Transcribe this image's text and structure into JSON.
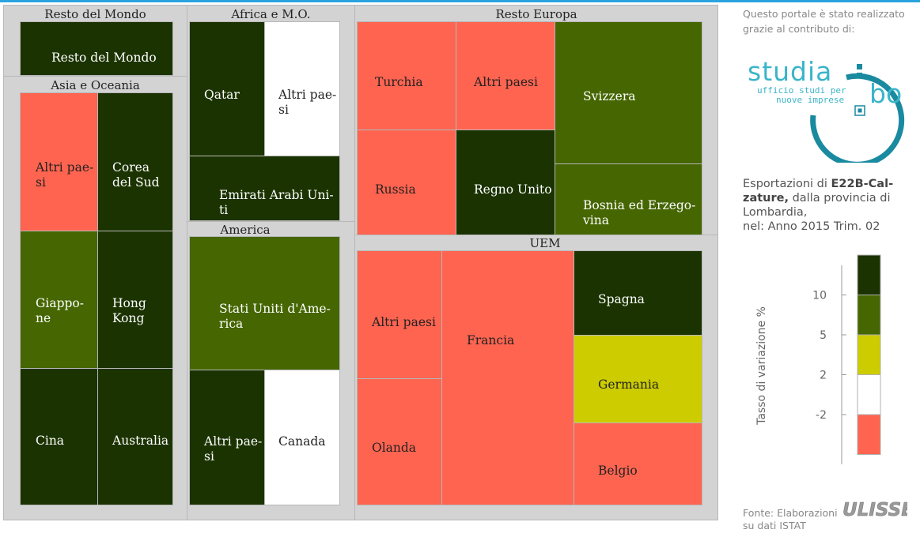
{
  "colors": {
    "verde_scuro": "#1b3300",
    "verde": "#456600",
    "giallo": "#cccc00",
    "bianco": "#ffffff",
    "rosso": "#ff6450",
    "cornice": "#d3d3d3",
    "accento": "#29a3e0"
  },
  "chart_data": {
    "type": "treemap",
    "groups": [
      {
        "name": "Resto del Mondo",
        "items": [
          {
            "label": "Resto del Mondo",
            "color_class": ">10"
          }
        ]
      },
      {
        "name": "Asia e Oceania",
        "items": [
          {
            "label": "Altri paesi",
            "color_class": "<-2"
          },
          {
            "label": "Corea del Sud",
            "color_class": ">10"
          },
          {
            "label": "Giappone",
            "color_class": "5 - 10"
          },
          {
            "label": "Hong Kong",
            "color_class": ">10"
          },
          {
            "label": "Cina",
            "color_class": ">10"
          },
          {
            "label": "Australia",
            "color_class": ">10"
          }
        ]
      },
      {
        "name": "Africa e M.O.",
        "items": [
          {
            "label": "Qatar",
            "color_class": ">10"
          },
          {
            "label": "Altri paesi",
            "color_class": "-2 - 2"
          },
          {
            "label": "Emirati Arabi Uniti",
            "color_class": ">10"
          }
        ]
      },
      {
        "name": "America",
        "items": [
          {
            "label": "Stati Uniti d'America",
            "color_class": "5 - 10"
          },
          {
            "label": "Altri paesi",
            "color_class": ">10"
          },
          {
            "label": "Canada",
            "color_class": "-2 - 2"
          }
        ]
      },
      {
        "name": "Resto Europa",
        "items": [
          {
            "label": "Turchia",
            "color_class": "<-2"
          },
          {
            "label": "Altri paesi",
            "color_class": "<-2"
          },
          {
            "label": "Svizzera",
            "color_class": "5 - 10"
          },
          {
            "label": "Russia",
            "color_class": "<-2"
          },
          {
            "label": "Regno Unito",
            "color_class": ">10"
          },
          {
            "label": "Bosnia ed Erzegovina",
            "color_class": "5 - 10"
          }
        ]
      },
      {
        "name": "UEM",
        "items": [
          {
            "label": "Altri paesi",
            "color_class": "<-2"
          },
          {
            "label": "Francia",
            "color_class": "<-2"
          },
          {
            "label": "Spagna",
            "color_class": ">10"
          },
          {
            "label": "Germania",
            "color_class": "2 - 5"
          },
          {
            "label": "Olanda",
            "color_class": "<-2"
          },
          {
            "label": "Belgio",
            "color_class": "<-2"
          }
        ]
      }
    ],
    "legend": {
      "title": "Tasso di variazione %",
      "ticks": [
        "10",
        "5",
        "2",
        "-2"
      ],
      "bands": [
        "#1b3300",
        "#456600",
        "#cccc00",
        "#ffffff",
        "#ff6450"
      ]
    }
  },
  "groups": {
    "rdm": {
      "title": "Resto del Mondo",
      "c1": "Resto del Mondo"
    },
    "asia": {
      "title": "Asia e Oceania",
      "c1": "Altri pae-\nsi",
      "c2": "Corea\ndel Sud",
      "c3": "Giappo-\nne",
      "c4": "Hong\nKong",
      "c5": "Cina",
      "c6": "Australia"
    },
    "africa": {
      "title": "Africa e M.O.",
      "c1": "Qatar",
      "c2": "Altri pae-\nsi",
      "c3": "Emirati Arabi Uni-\nti"
    },
    "america": {
      "title": "America",
      "c1": "Stati Uniti d'Ame-\nrica",
      "c2": "Altri pae-\nsi",
      "c3": "Canada"
    },
    "europa": {
      "title": "Resto Europa",
      "c1": "Turchia",
      "c2": "Altri paesi",
      "c3": "Svizzera",
      "c4": "Russia",
      "c5": "Regno Unito",
      "c6": "Bosnia ed Erzego-\nvina"
    },
    "uem": {
      "title": "UEM",
      "c1": "Altri paesi",
      "c2": "Francia",
      "c3": "Spagna",
      "c4": "Germania",
      "c5": "Olanda",
      "c6": "Belgio"
    }
  },
  "sidebar": {
    "credit": "Questo portale è stato realizzato grazie al contributo di:",
    "logo_text": "studia",
    "logo_tagline_1": "ufficio studi per",
    "logo_tagline_2": "nuove imprese",
    "logo_suffix": "bo",
    "desc_prefix": "Esportazioni di ",
    "desc_product": "E22B-Cal-\nzature,",
    "desc_rest": " dalla provincia di\nLombardia,\nnel: Anno 2015 Trim. 02",
    "source": "Fonte: Elaborazioni\nsu dati ISTAT",
    "ulisse": "ULISSE"
  }
}
